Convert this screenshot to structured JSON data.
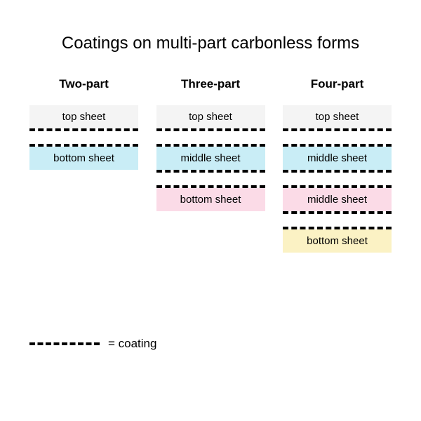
{
  "title": "Coatings on multi-part carbonless forms",
  "title_fontsize": 24,
  "background_color": "#ffffff",
  "coating_style": {
    "dash_width": 4,
    "color": "#000000"
  },
  "sheet_colors": {
    "top": "#f4f4f4",
    "blue": "#c9edf6",
    "pink": "#fbdbe7",
    "yellow": "#fbf2c4"
  },
  "columns": [
    {
      "header": "Two-part",
      "sheets": [
        {
          "label": "top sheet",
          "fill": "#f4f4f4",
          "coat_top": false,
          "coat_bottom": true
        },
        {
          "label": "bottom sheet",
          "fill": "#c9edf6",
          "coat_top": true,
          "coat_bottom": false
        }
      ]
    },
    {
      "header": "Three-part",
      "sheets": [
        {
          "label": "top sheet",
          "fill": "#f4f4f4",
          "coat_top": false,
          "coat_bottom": true
        },
        {
          "label": "middle sheet",
          "fill": "#c9edf6",
          "coat_top": true,
          "coat_bottom": true
        },
        {
          "label": "bottom sheet",
          "fill": "#fbdbe7",
          "coat_top": true,
          "coat_bottom": false
        }
      ]
    },
    {
      "header": "Four-part",
      "sheets": [
        {
          "label": "top sheet",
          "fill": "#f4f4f4",
          "coat_top": false,
          "coat_bottom": true
        },
        {
          "label": "middle sheet",
          "fill": "#c9edf6",
          "coat_top": true,
          "coat_bottom": true
        },
        {
          "label": "middle sheet",
          "fill": "#fbdbe7",
          "coat_top": true,
          "coat_bottom": true
        },
        {
          "label": "bottom sheet",
          "fill": "#fbf2c4",
          "coat_top": true,
          "coat_bottom": false
        }
      ]
    }
  ],
  "legend": {
    "label": "= coating"
  }
}
